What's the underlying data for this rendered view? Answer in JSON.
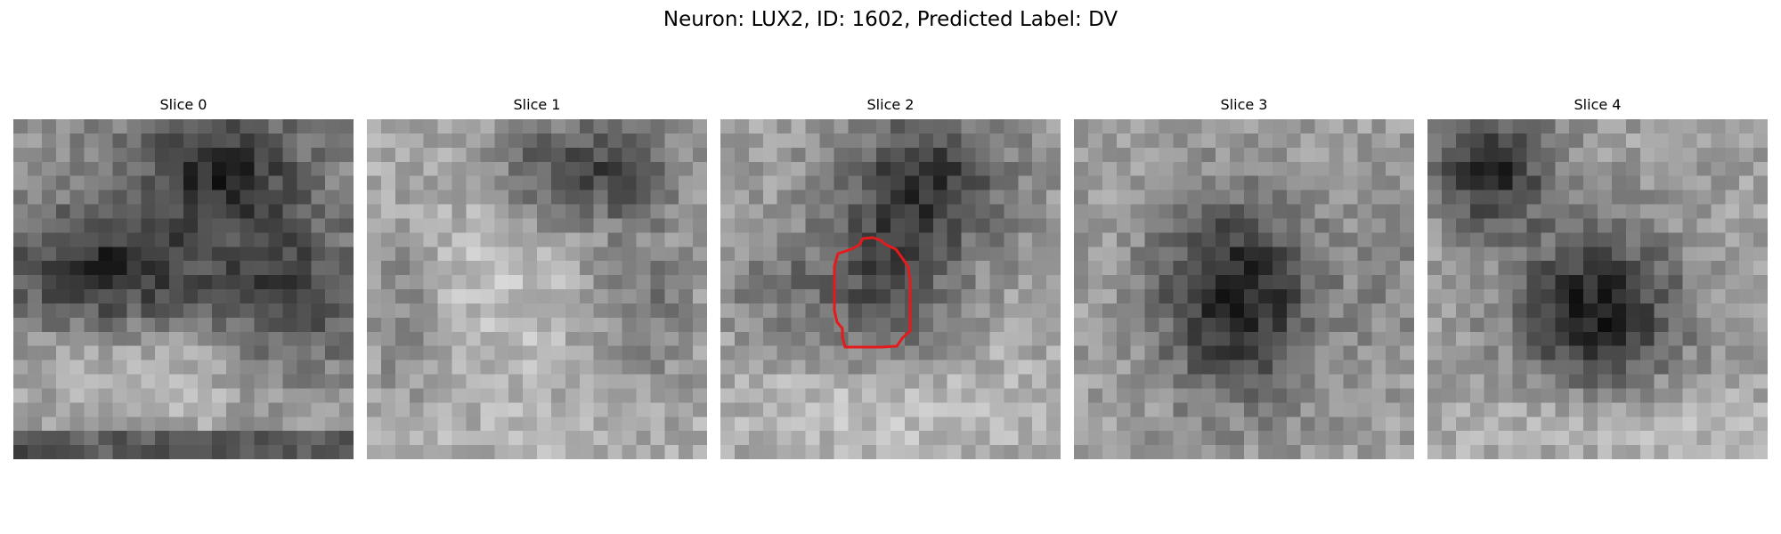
{
  "figure": {
    "title": "Neuron: LUX2, ID: 1602, Predicted Label: DV"
  },
  "panels": [
    {
      "title": "Slice 0",
      "contour": false
    },
    {
      "title": "Slice 1",
      "contour": false
    },
    {
      "title": "Slice 2",
      "contour": true
    },
    {
      "title": "Slice 3",
      "contour": false
    },
    {
      "title": "Slice 4",
      "contour": false
    }
  ],
  "colors": {
    "contour": "#e41a1c",
    "colormap": "gray"
  }
}
